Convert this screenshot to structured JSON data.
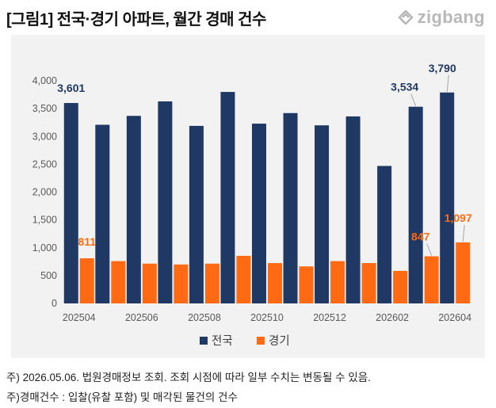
{
  "title": "[그림1] 전국·경기 아파트, 월간 경매 건수",
  "brand": {
    "name": "zigbang",
    "icon": "zigbang-logo-icon"
  },
  "notes": [
    "주) 2026.05.06. 법원경매정보 조회. 조회 시점에 따라 일부 수치는 변동될 수 있음.",
    "주)경매건수 : 입찰(유찰 포함) 및 매각된 물건의 건수"
  ],
  "chart_data": {
    "type": "bar",
    "categories": [
      "202504",
      "202505",
      "202506",
      "202507",
      "202508",
      "202509",
      "202510",
      "202511",
      "202512",
      "202601",
      "202602",
      "202603",
      "202604"
    ],
    "x_tick_labels": [
      "202504",
      "",
      "202506",
      "",
      "202508",
      "",
      "202510",
      "",
      "202512",
      "",
      "202602",
      "",
      "202604"
    ],
    "series": [
      {
        "name": "전국",
        "color": "#1f3864",
        "values": [
          3601,
          3210,
          3370,
          3630,
          3190,
          3800,
          3230,
          3420,
          3200,
          3360,
          2470,
          3534,
          3790
        ]
      },
      {
        "name": "경기",
        "color": "#ff6a13",
        "values": [
          811,
          760,
          715,
          700,
          715,
          855,
          725,
          665,
          760,
          725,
          585,
          847,
          1097
        ]
      }
    ],
    "data_labels": [
      {
        "series": 0,
        "index": 0,
        "text": "3,601"
      },
      {
        "series": 0,
        "index": 11,
        "text": "3,534"
      },
      {
        "series": 0,
        "index": 12,
        "text": "3,790"
      },
      {
        "series": 1,
        "index": 0,
        "text": "811"
      },
      {
        "series": 1,
        "index": 11,
        "text": "847"
      },
      {
        "series": 1,
        "index": 12,
        "text": "1,097"
      }
    ],
    "y_ticks": [
      0,
      500,
      1000,
      1500,
      2000,
      2500,
      3000,
      3500,
      4000
    ],
    "y_tick_labels": [
      "0",
      "500",
      "1,000",
      "1,500",
      "2,000",
      "2,500",
      "3,000",
      "3,500",
      "4,000"
    ],
    "ylim": [
      0,
      4000
    ],
    "grid": false,
    "legend": "bottom"
  }
}
